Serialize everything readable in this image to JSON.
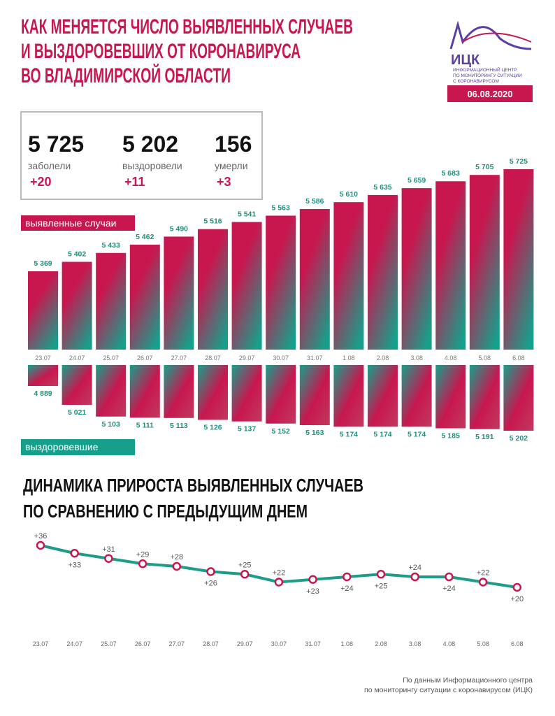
{
  "header": {
    "title": [
      "КАК МЕНЯЕТСЯ ЧИСЛО ВЫЯВЛЕННЫХ СЛУЧАЕВ",
      "И ВЫЗДОРОВЕВШИХ ОТ КОРОНАВИРУСА",
      "ВО ВЛАДИМИРСКОЙ ОБЛАСТИ"
    ],
    "logo_name": "ИЦК",
    "logo_lines": [
      "ИНФОРМАЦИОННЫЙ ЦЕНТР",
      "ПО МОНИТОРИНГУ СИТУАЦИИ",
      "С КОРОНАВИРУСОМ"
    ],
    "date": "06.08.2020"
  },
  "summary": [
    {
      "value": "5 725",
      "label": "заболели",
      "change": "+20"
    },
    {
      "value": "5 202",
      "label": "выздоровели",
      "change": "+11"
    },
    {
      "value": "156",
      "label": "умерли",
      "change": "+3"
    }
  ],
  "chart_data": [
    {
      "type": "bar",
      "title": "выявленные случаи",
      "categories": [
        "23.07",
        "24.07",
        "25.07",
        "26.07",
        "27.07",
        "28.07",
        "29.07",
        "30.07",
        "31.07",
        "1.08",
        "2.08",
        "3.08",
        "4.08",
        "5.08",
        "6.08"
      ],
      "values": [
        5369,
        5402,
        5433,
        5462,
        5490,
        5516,
        5541,
        5563,
        5586,
        5610,
        5635,
        5659,
        5683,
        5705,
        5725
      ],
      "value_labels": [
        "5 369",
        "5 402",
        "5 433",
        "5 462",
        "5 490",
        "5 516",
        "5 541",
        "5 563",
        "5 586",
        "5 610",
        "5 635",
        "5 659",
        "5 683",
        "5 705",
        "5 725"
      ],
      "colors": [
        "#c8174f",
        "#16a08b"
      ],
      "direction": "up"
    },
    {
      "type": "bar",
      "title": "выздоровевшие",
      "values": [
        4889,
        5021,
        5103,
        5111,
        5113,
        5126,
        5137,
        5152,
        5163,
        5174,
        5174,
        5174,
        5185,
        5191,
        5202
      ],
      "value_labels": [
        "4 889",
        "5 021",
        "5 103",
        "5 111",
        "5 113",
        "5 126",
        "5 137",
        "5 152",
        "5 163",
        "5 174",
        "5 174",
        "5 174",
        "5 185",
        "5 191",
        "5 202"
      ],
      "colors": [
        "#c8174f",
        "#16a08b"
      ],
      "direction": "down"
    },
    {
      "type": "line",
      "title": [
        "ДИНАМИКА ПРИРОСТА ВЫЯВЛЕННЫХ СЛУЧАЕВ",
        "ПО СРАВНЕНИЮ С ПРЕДЫДУЩИМ ДНЕМ"
      ],
      "categories": [
        "23.07",
        "24.07",
        "25.07",
        "26.07",
        "27.07",
        "28.07",
        "29.07",
        "30.07",
        "31.07",
        "1.08",
        "2.08",
        "3.08",
        "4.08",
        "5.08",
        "6.08"
      ],
      "values": [
        36,
        33,
        31,
        29,
        28,
        26,
        25,
        22,
        23,
        24,
        25,
        24,
        24,
        22,
        20
      ],
      "value_labels": [
        "+36",
        "+33",
        "+31",
        "+29",
        "+28",
        "+26",
        "+25",
        "+22",
        "+23",
        "+24",
        "+25",
        "+24",
        "+24",
        "+22",
        "+20"
      ],
      "color": "#1e9c8a",
      "marker_color": "#c8174f"
    }
  ],
  "footer": [
    "По данным Информационного центра",
    "по мониторингу ситуации с коронавирусом (ИЦК)"
  ]
}
